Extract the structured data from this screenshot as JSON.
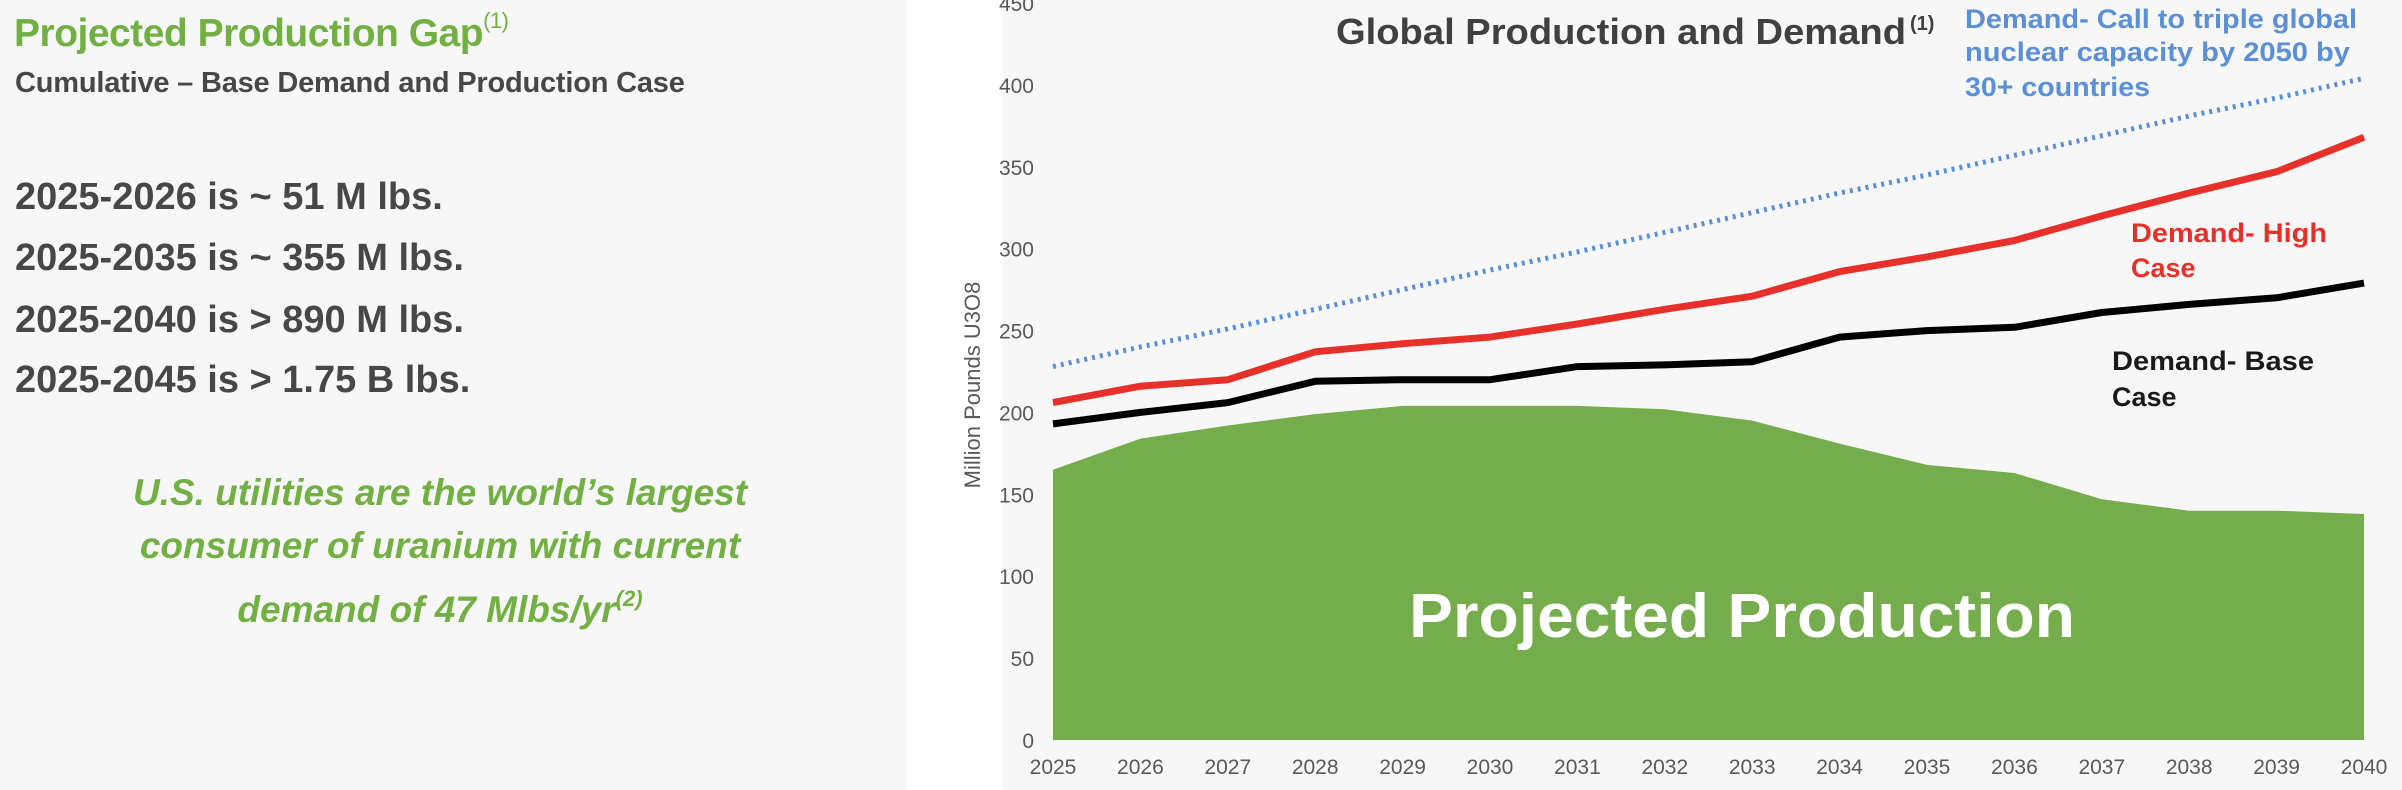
{
  "left_panel": {
    "title": "Projected Production Gap",
    "title_note": "(1)",
    "subtitle": "Cumulative – Base Demand and Production Case",
    "stats": [
      "2025-2026 is ~ 51 M lbs.",
      "2025-2035 is ~ 355 M lbs.",
      "2025-2040 is > 890 M lbs.",
      "2025-2045 is > 1.75 B lbs."
    ],
    "callout_lines": [
      "U.S. utilities are the world’s largest",
      "consumer of uranium with current",
      "demand of 47 Mlbs/yr"
    ],
    "callout_note": "(2)",
    "accent_color": "#72b043"
  },
  "chart_data": {
    "type": "area",
    "title": "Global Production and Demand",
    "title_note": "(1)",
    "ylabel": "Million Pounds U3O8",
    "xlabel": "",
    "ylim": [
      0,
      450
    ],
    "yticks": [
      0,
      50,
      100,
      150,
      200,
      250,
      300,
      350,
      400,
      450
    ],
    "x": [
      2025,
      2026,
      2027,
      2028,
      2029,
      2030,
      2031,
      2032,
      2033,
      2034,
      2035,
      2036,
      2037,
      2038,
      2039,
      2040
    ],
    "grid": false,
    "series": [
      {
        "name": "Projected Production",
        "kind": "area",
        "color": "#76ad4c",
        "values": [
          165,
          184,
          192,
          199,
          204,
          204,
          204,
          202,
          195,
          181,
          168,
          163,
          147,
          140,
          140,
          138
        ]
      },
      {
        "name": "Demand- Base Case",
        "kind": "line",
        "color": "#000000",
        "values": [
          193,
          200,
          206,
          219,
          220,
          220,
          228,
          229,
          231,
          246,
          250,
          252,
          261,
          266,
          270,
          279
        ]
      },
      {
        "name": "Demand- High Case",
        "kind": "line",
        "color": "#e8302a",
        "values": [
          206,
          216,
          220,
          237,
          242,
          246,
          254,
          263,
          271,
          286,
          295,
          305,
          320,
          334,
          347,
          368
        ]
      },
      {
        "name": "Demand- Call to triple global nuclear capacity by 2050 by 30+ countries",
        "kind": "dotted",
        "color": "#5b8fd6",
        "values": [
          228,
          240,
          251,
          263,
          275,
          287,
          298,
          310,
          322,
          334,
          345,
          357,
          369,
          381,
          392,
          404
        ]
      }
    ],
    "annotations": {
      "triple": [
        "Demand- Call to triple global",
        "nuclear capacity by 2050 by",
        "30+ countries"
      ],
      "high": [
        "Demand- High",
        "Case"
      ],
      "base": [
        "Demand- Base",
        "Case"
      ],
      "production": "Projected Production"
    }
  }
}
